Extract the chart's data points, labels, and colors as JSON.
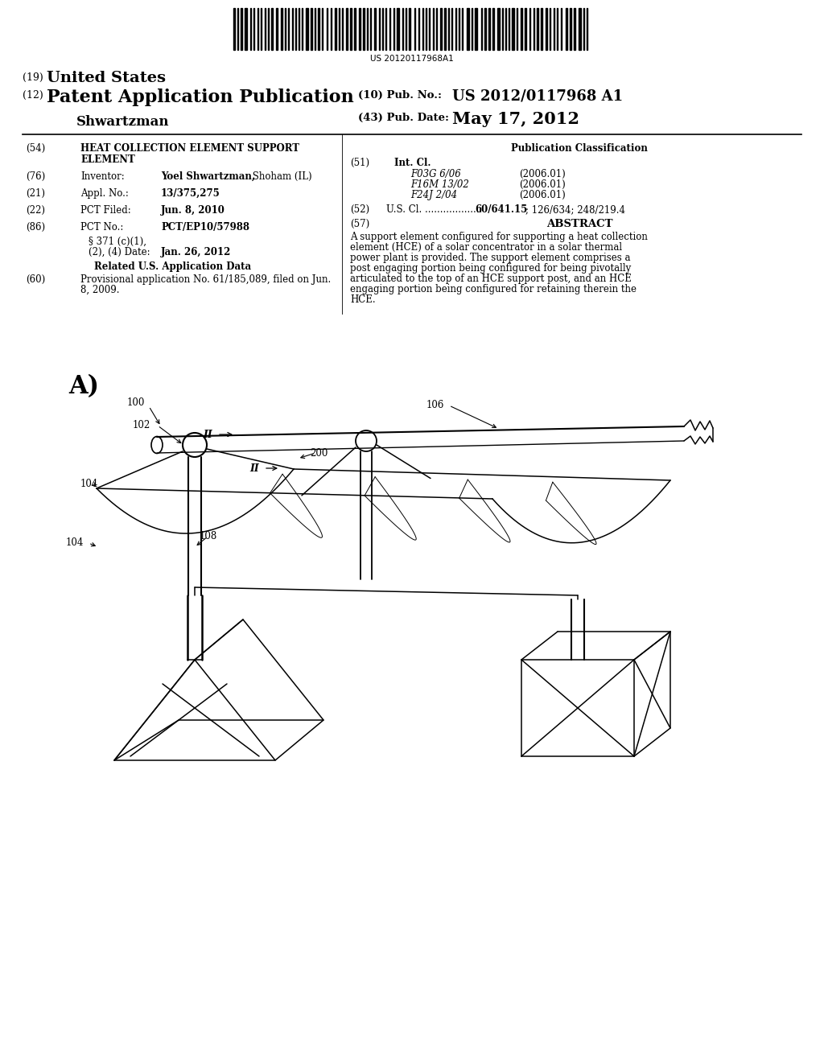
{
  "bg_color": "#ffffff",
  "barcode_text": "US 20120117968A1",
  "title_19": "(19) United States",
  "title_12_label": "(12)",
  "title_12": "Patent Application Publication",
  "inventor_name": "Shwartzman",
  "pub_no_label": "(10) Pub. No.:",
  "pub_no": "US 2012/0117968 A1",
  "pub_date_label": "(43) Pub. Date:",
  "pub_date": "May 17, 2012",
  "field54_label": "(54)",
  "field54_line1": "HEAT COLLECTION ELEMENT SUPPORT",
  "field54_line2": "ELEMENT",
  "pub_class_title": "Publication Classification",
  "field51_label": "(51)",
  "field51": "Int. Cl.",
  "class1": "F03G 6/06",
  "class1_date": "(2006.01)",
  "class2": "F16M 13/02",
  "class2_date": "(2006.01)",
  "class3": "F24J 2/04",
  "class3_date": "(2006.01)",
  "field52_label": "(52)",
  "field52a": "U.S. Cl. ................... ",
  "field52b": "60/641.15",
  "field52c": "; 126/634; 248/219.4",
  "field76_label": "(76)",
  "field76_key": "Inventor:",
  "field76_bold": "Yoel Shwartzman,",
  "field76_rest": " Shoham (IL)",
  "field21_label": "(21)",
  "field21_key": "Appl. No.:",
  "field21_val": "13/375,275",
  "field22_label": "(22)",
  "field22_key": "PCT Filed:",
  "field22_val": "Jun. 8, 2010",
  "field86_label": "(86)",
  "field86_key": "PCT No.:",
  "field86_val": "PCT/EP10/57988",
  "field86b_line1": "§ 371 (c)(1),",
  "field86b_line2": "(2), (4) Date:",
  "field86b_val": "Jan. 26, 2012",
  "related_title": "Related U.S. Application Data",
  "field60_label": "(60)",
  "field60_line1": "Provisional application No. 61/185,089, filed on Jun.",
  "field60_line2": "8, 2009.",
  "abstract_label": "(57)",
  "abstract_title": "ABSTRACT",
  "abstract_lines": [
    "A support element configured for supporting a heat collection",
    "element (HCE) of a solar concentrator in a solar thermal",
    "power plant is provided. The support element comprises a",
    "post engaging portion being configured for being pivotally",
    "articulated to the top of an HCE support post, and an HCE",
    "engaging portion being configured for retaining therein the",
    "HCE."
  ],
  "fig_label": "A)"
}
